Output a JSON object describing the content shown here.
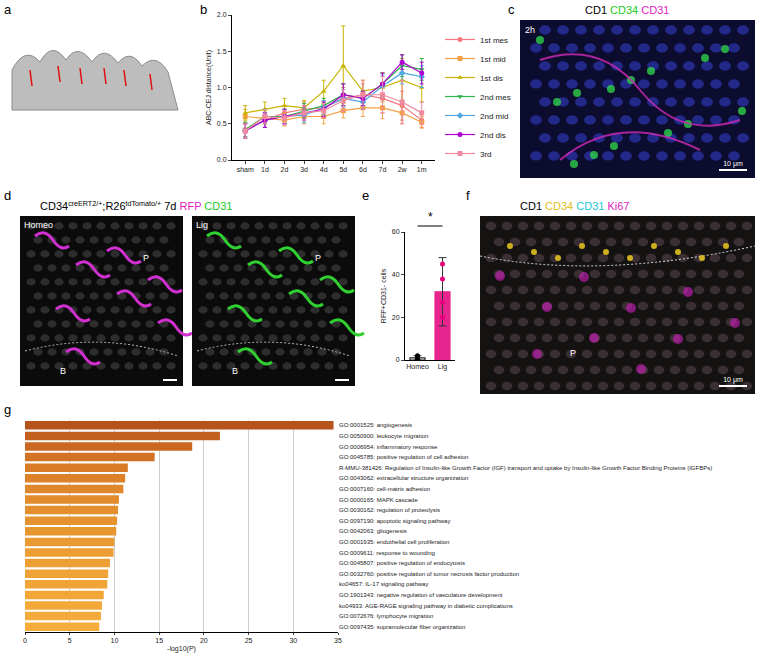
{
  "chart_data": [
    {
      "panel": "b",
      "type": "line",
      "categories": [
        "sham",
        "1d",
        "2d",
        "3d",
        "4d",
        "5d",
        "6d",
        "7d",
        "2w",
        "1m"
      ],
      "y_label": "ABC-CEJ distance(Unit)",
      "ylim": [
        0,
        2
      ],
      "yticks": [
        {
          "value": 0,
          "label": "0.0"
        },
        {
          "value": 0.5,
          "label": "0.5"
        },
        {
          "value": 1,
          "label": "1.0"
        },
        {
          "value": 1.5,
          "label": "1.5"
        },
        {
          "value": 2,
          "label": "2.0"
        }
      ],
      "legend": "right",
      "series": [
        {
          "name": "1st mes",
          "color": "#f4777f",
          "marker": "circle",
          "values": [
            0.42,
            0.55,
            0.65,
            0.7,
            0.72,
            0.85,
            0.9,
            0.85,
            0.75,
            0.55
          ],
          "errors": [
            0.1,
            0.1,
            0.1,
            0.1,
            0.1,
            0.15,
            0.15,
            0.2,
            0.2,
            0.1
          ]
        },
        {
          "name": "1st mid",
          "color": "#f5a045",
          "marker": "square",
          "values": [
            0.6,
            0.58,
            0.55,
            0.6,
            0.6,
            0.68,
            0.72,
            0.72,
            0.65,
            0.52
          ],
          "errors": [
            0.1,
            0.08,
            0.08,
            0.1,
            0.1,
            0.1,
            0.12,
            0.15,
            0.15,
            0.08
          ]
        },
        {
          "name": "1st dis",
          "color": "#c8b400",
          "marker": "triangle-up",
          "values": [
            0.65,
            0.7,
            0.75,
            0.72,
            0.95,
            1.3,
            0.95,
            1.0,
            1.1,
            1.0
          ],
          "errors": [
            0.1,
            0.1,
            0.1,
            0.1,
            0.15,
            0.55,
            0.15,
            0.2,
            0.3,
            0.2
          ]
        },
        {
          "name": "2nd mes",
          "color": "#2fb34a",
          "marker": "triangle-down",
          "values": [
            0.42,
            0.6,
            0.6,
            0.68,
            0.75,
            0.9,
            0.85,
            1.05,
            1.3,
            1.25
          ],
          "errors": [
            0.1,
            0.1,
            0.1,
            0.1,
            0.1,
            0.15,
            0.1,
            0.15,
            0.15,
            0.15
          ]
        },
        {
          "name": "2nd mid",
          "color": "#4fa8e0",
          "marker": "diamond",
          "values": [
            0.4,
            0.55,
            0.6,
            0.62,
            0.72,
            0.85,
            0.8,
            1.02,
            1.2,
            1.15
          ],
          "errors": [
            0.1,
            0.1,
            0.1,
            0.1,
            0.1,
            0.12,
            0.1,
            0.15,
            0.15,
            0.15
          ]
        },
        {
          "name": "2nd dis",
          "color": "#b000d0",
          "marker": "circle",
          "values": [
            0.4,
            0.55,
            0.6,
            0.65,
            0.7,
            0.9,
            0.85,
            1.05,
            1.35,
            1.2
          ],
          "errors": [
            0.1,
            0.1,
            0.1,
            0.1,
            0.1,
            0.15,
            0.1,
            0.15,
            0.1,
            0.15
          ]
        },
        {
          "name": "3rd",
          "color": "#f08aa0",
          "marker": "square",
          "values": [
            0.4,
            0.6,
            0.58,
            0.65,
            0.68,
            0.82,
            0.9,
            0.9,
            0.8,
            0.65
          ],
          "errors": [
            0.1,
            0.1,
            0.1,
            0.1,
            0.1,
            0.15,
            0.2,
            0.25,
            0.3,
            0.15
          ]
        }
      ]
    },
    {
      "panel": "e",
      "type": "bar",
      "categories": [
        "Homeo",
        "Lig"
      ],
      "values": [
        1,
        32
      ],
      "errors": [
        1,
        16
      ],
      "points": [
        [
          0,
          1,
          2
        ],
        [
          45,
          38,
          27,
          20
        ]
      ],
      "colors": [
        "#000000",
        "#e4007c"
      ],
      "y_label": "RFP+CD31- cells",
      "ylim": [
        0,
        60
      ],
      "yticks": [
        0,
        20,
        40,
        60
      ],
      "significance": "*"
    },
    {
      "panel": "g",
      "type": "bar",
      "orientation": "horizontal",
      "categories": [
        "GO:0001525: angiogenesis",
        "GO:0050900: leukocyte migration",
        "GO:0006954: inflammatory response",
        "GO:0045785: positive regulation of cell adhesion",
        "R-MMU-381426: Regulation of Insulin-like Growth Factor (IGF) transport and uptake by Insulin-like Growth Factor Binding Proteins (IGFBPs)",
        "GO:0043062: extracellular structure organization",
        "GO:0007160: cell-matrix adhesion",
        "GO:0000165: MAPK cascade",
        "GO:0030162: regulation of proteolysis",
        "GO:0097190: apoptotic signaling pathway",
        "GO:0042063: gliogenesis",
        "GO:0001935: endothelial cell proliferation",
        "GO:0009611: response to wounding",
        "GO:0045807: positive regulation of endocytosis",
        "GO:0032760: positive regulation of tumor necrosis factor production",
        "ko04657: IL-17 signaling pathway",
        "GO:1901343: negative regulation of vasculature development",
        "ko04933: AGE-RAGE signaling pathway in diabetic complications",
        "GO:0072676: lymphocyte migration",
        "GO:0097435: supramolecular fiber organization"
      ],
      "values": [
        34.5,
        21.8,
        18.7,
        14.5,
        11.5,
        11.2,
        11,
        10.5,
        10.4,
        10.3,
        10.2,
        10,
        9.9,
        9.5,
        9.3,
        9.2,
        8.8,
        8.6,
        8.5,
        8.3
      ],
      "colors": [
        "#b5531b",
        "#c25f1f",
        "#ca6822",
        "#d27224",
        "#d97b27",
        "#dd8229",
        "#e0872b",
        "#e28b2c",
        "#e48f2e",
        "#e6932f",
        "#e89730",
        "#ea9a32",
        "#ec9d33",
        "#ee9f34",
        "#efa236",
        "#f0a437",
        "#f2a638",
        "#f3a839",
        "#f4aa3a",
        "#f5ac3b"
      ],
      "x_label": "-log10(P)",
      "xlim": [
        0,
        35
      ],
      "xticks": [
        0,
        5,
        10,
        15,
        20,
        25,
        30,
        35
      ],
      "grid": true
    }
  ],
  "images": [
    {
      "panel": "a"
    },
    {
      "panel": "c",
      "title": [
        {
          "text": "CD1",
          "color": "#000000"
        },
        {
          "text": "CD34",
          "color": "#22cc22"
        },
        {
          "text": "CD31",
          "color": "#e020c0"
        }
      ],
      "inset": "2h",
      "scale_bar": "10 μm",
      "markers": []
    },
    {
      "panel": "d",
      "title": [
        {
          "text": "CD34",
          "color": "#000000",
          "sup": false
        },
        {
          "text": "creERT2/+",
          "color": "#000000",
          "sup": true
        },
        {
          "text": ";R26",
          "color": "#000000",
          "sup": false
        },
        {
          "text": "tdTomato/+",
          "color": "#000000",
          "sup": true
        },
        {
          "text": " 7d",
          "color": "#000000",
          "sup": false
        },
        {
          "text": " RFP",
          "color": "#e020c0",
          "sup": false
        },
        {
          "text": " CD31",
          "color": "#22cc22",
          "sup": false
        }
      ],
      "views": [
        {
          "inset": "Homeo",
          "markers": [
            "P",
            "B"
          ]
        },
        {
          "inset": "Lig",
          "markers": [
            "P",
            "B"
          ]
        }
      ]
    },
    {
      "panel": "f",
      "title": [
        {
          "text": "CD1",
          "color": "#000000"
        },
        {
          "text": "CD34",
          "color": "#e0c020"
        },
        {
          "text": "CD31",
          "color": "#20c8d8"
        },
        {
          "text": "Ki67",
          "color": "#e020c0"
        }
      ],
      "scale_bar": "10 μm",
      "markers": [
        "P"
      ]
    }
  ]
}
